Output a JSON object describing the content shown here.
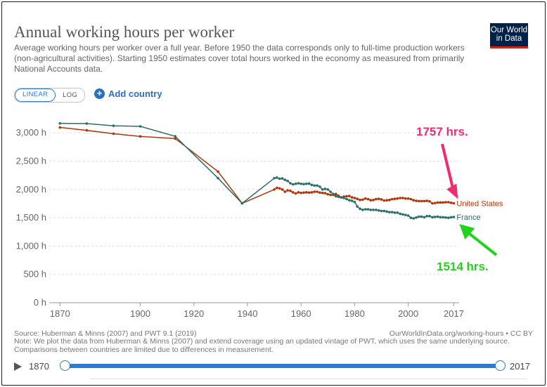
{
  "header": {
    "title": "Annual working hours per worker",
    "subtitle": "Average working hours per worker over a full year. Before 1950 the data corresponds only to full-time production workers (non-agricultural activities). Starting 1950 estimates cover total hours worked in the economy as measured from primarily National Accounts data.",
    "logo_line1": "Our World",
    "logo_line2": "in Data"
  },
  "controls": {
    "linear_label": "LINEAR",
    "log_label": "LOG",
    "add_country_label": "Add country",
    "add_icon": "plus-circle-icon"
  },
  "colors": {
    "us": "#b13507",
    "france": "#2b6e6a",
    "annotation_pink": "#ed2d6e",
    "annotation_green": "#22d31b",
    "accent": "#2b7bd1"
  },
  "chart_data": {
    "type": "line",
    "xlim": [
      1866,
      2019
    ],
    "ylim": [
      0,
      3000
    ],
    "y_ticks": [
      0,
      500,
      1000,
      1500,
      2000,
      2500,
      3000
    ],
    "y_tick_labels": [
      "0 h",
      "500 h",
      "1,000 h",
      "1,500 h",
      "2,000 h",
      "2,500 h",
      "3,000 h"
    ],
    "x_ticks": [
      1870,
      1900,
      1920,
      1940,
      1960,
      1980,
      2000,
      2017
    ],
    "x_tick_labels": [
      "1870",
      "1900",
      "1920",
      "1940",
      "1960",
      "1980",
      "2000",
      "2017"
    ],
    "grid": "horizontal",
    "series": [
      {
        "name": "United States",
        "x": [
          1870,
          1880,
          1890,
          1900,
          1913,
          1929,
          1938,
          1950,
          1951,
          1952,
          1953,
          1954,
          1955,
          1956,
          1957,
          1958,
          1959,
          1960,
          1961,
          1962,
          1963,
          1964,
          1965,
          1966,
          1967,
          1968,
          1969,
          1970,
          1971,
          1972,
          1973,
          1974,
          1975,
          1976,
          1977,
          1978,
          1979,
          1980,
          1981,
          1982,
          1983,
          1984,
          1985,
          1986,
          1987,
          1988,
          1989,
          1990,
          1991,
          1992,
          1993,
          1994,
          1995,
          1996,
          1997,
          1998,
          1999,
          2000,
          2001,
          2002,
          2003,
          2004,
          2005,
          2006,
          2007,
          2008,
          2009,
          2010,
          2011,
          2012,
          2013,
          2014,
          2015,
          2016,
          2017
        ],
        "values": [
          3096,
          3045,
          2985,
          2938,
          2900,
          2316,
          1756,
          2000,
          2030,
          2020,
          2000,
          1960,
          1985,
          1975,
          1950,
          1930,
          1950,
          1940,
          1945,
          1950,
          1945,
          1950,
          1960,
          1960,
          1945,
          1940,
          1935,
          1915,
          1905,
          1905,
          1920,
          1890,
          1860,
          1875,
          1880,
          1885,
          1860,
          1850,
          1835,
          1815,
          1820,
          1840,
          1830,
          1810,
          1815,
          1830,
          1835,
          1825,
          1805,
          1810,
          1815,
          1830,
          1835,
          1840,
          1850,
          1850,
          1840,
          1840,
          1830,
          1810,
          1800,
          1795,
          1795,
          1795,
          1800,
          1790,
          1755,
          1760,
          1770,
          1770,
          1770,
          1775,
          1775,
          1765,
          1757
        ]
      },
      {
        "name": "France",
        "x": [
          1870,
          1880,
          1890,
          1900,
          1913,
          1929,
          1938,
          1950,
          1951,
          1952,
          1953,
          1954,
          1955,
          1956,
          1957,
          1958,
          1959,
          1960,
          1961,
          1962,
          1963,
          1964,
          1965,
          1966,
          1967,
          1968,
          1969,
          1970,
          1971,
          1972,
          1973,
          1974,
          1975,
          1976,
          1977,
          1978,
          1979,
          1980,
          1981,
          1982,
          1983,
          1984,
          1985,
          1986,
          1987,
          1988,
          1989,
          1990,
          1991,
          1992,
          1993,
          1994,
          1995,
          1996,
          1997,
          1998,
          1999,
          2000,
          2001,
          2002,
          2003,
          2004,
          2005,
          2006,
          2007,
          2008,
          2009,
          2010,
          2011,
          2012,
          2013,
          2014,
          2015,
          2016,
          2017
        ],
        "values": [
          3168,
          3165,
          3125,
          3115,
          2940,
          2200,
          1756,
          2200,
          2210,
          2190,
          2195,
          2170,
          2150,
          2110,
          2090,
          2100,
          2110,
          2100,
          2095,
          2100,
          2105,
          2080,
          2070,
          2070,
          2050,
          2000,
          2010,
          2000,
          1960,
          1920,
          1880,
          1870,
          1860,
          1850,
          1830,
          1810,
          1800,
          1780,
          1700,
          1660,
          1640,
          1650,
          1650,
          1640,
          1640,
          1640,
          1630,
          1620,
          1620,
          1610,
          1600,
          1600,
          1590,
          1590,
          1570,
          1560,
          1550,
          1540,
          1500,
          1490,
          1505,
          1520,
          1520,
          1510,
          1530,
          1530,
          1510,
          1515,
          1520,
          1510,
          1510,
          1505,
          1500,
          1510,
          1514
        ]
      }
    ],
    "annotations": [
      {
        "text": "1757 hrs.",
        "color": "#ed2d6e",
        "series": "United States"
      },
      {
        "text": "1514 hrs.",
        "color": "#22d31b",
        "series": "France"
      }
    ]
  },
  "footer": {
    "source": "Source: Huberman & Minns (2007) and PWT 9.1 (2019)",
    "url": "OurWorldInData.org/working-hours • CC BY",
    "note": "Note: We plot the data from Huberman & Minns (2007) and extend coverage using an updated vintage of PWT, which uses the same underlying source. Comparisons between countries are limited due to differences in measurement."
  },
  "timeline": {
    "start_year": "1870",
    "end_year": "2017"
  }
}
